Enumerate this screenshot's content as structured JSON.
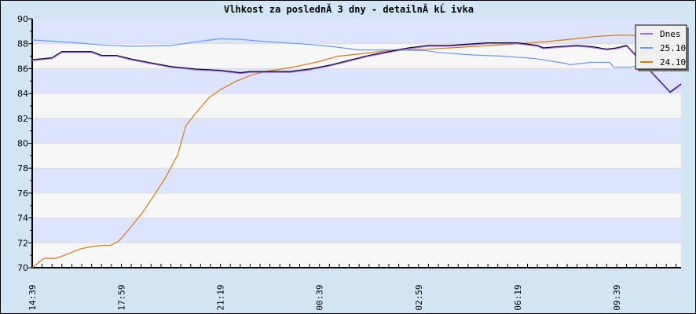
{
  "chart_data": {
    "type": "line",
    "title": "Vlhkost za poslednĂ­ 3 dny - detailnĂ­ kĹ ivka",
    "xlabel": "",
    "ylabel": "",
    "ylim": [
      70,
      90
    ],
    "yticks": [
      "70",
      "72",
      "74",
      "76",
      "78",
      "80",
      "82",
      "84",
      "86",
      "88",
      "90"
    ],
    "x_tick_labels": [
      "14:39",
      "17:59",
      "21:19",
      "00:39",
      "02:59",
      "06:19",
      "09:39"
    ],
    "x_tick_positions": [
      0,
      9,
      19,
      29,
      39,
      49,
      59
    ],
    "x_range": [
      0,
      65.5
    ],
    "grid": "horizontal bands",
    "legend_position": "top-right",
    "series": [
      {
        "name": "Dnes",
        "color": "#9966ff",
        "points": [
          [
            0,
            86.65
          ],
          [
            2,
            86.8
          ],
          [
            3,
            87.3
          ],
          [
            6,
            87.3
          ],
          [
            7,
            87.0
          ],
          [
            8.5,
            87.0
          ],
          [
            10,
            86.7
          ],
          [
            12,
            86.4
          ],
          [
            14,
            86.1
          ],
          [
            16.5,
            85.9
          ],
          [
            19,
            85.8
          ],
          [
            20,
            85.7
          ],
          [
            21,
            85.6
          ],
          [
            22,
            85.7
          ],
          [
            24,
            85.7
          ],
          [
            26,
            85.7
          ],
          [
            28,
            85.9
          ],
          [
            30,
            86.2
          ],
          [
            32,
            86.6
          ],
          [
            34,
            87.0
          ],
          [
            36,
            87.3
          ],
          [
            38,
            87.6
          ],
          [
            40,
            87.8
          ],
          [
            42,
            87.8
          ],
          [
            44,
            87.9
          ],
          [
            46,
            88.0
          ],
          [
            49,
            88.0
          ],
          [
            51,
            87.8
          ],
          [
            51.6,
            87.6
          ],
          [
            53,
            87.7
          ],
          [
            55,
            87.8
          ],
          [
            56.5,
            87.7
          ],
          [
            58,
            87.5
          ],
          [
            59,
            87.6
          ],
          [
            60,
            87.8
          ],
          [
            64.4,
            84.05
          ],
          [
            65.5,
            84.7
          ]
        ]
      },
      {
        "name": "25.10",
        "color": "#6699ff",
        "points": [
          [
            0,
            88.3
          ],
          [
            2,
            88.2
          ],
          [
            4,
            88.1
          ],
          [
            7,
            87.9
          ],
          [
            10,
            87.8
          ],
          [
            14,
            87.85
          ],
          [
            17,
            88.2
          ],
          [
            19,
            88.4
          ],
          [
            21,
            88.35
          ],
          [
            23,
            88.2
          ],
          [
            27,
            88.0
          ],
          [
            30,
            87.8
          ],
          [
            33,
            87.5
          ],
          [
            36.5,
            87.5
          ],
          [
            39.7,
            87.45
          ],
          [
            41,
            87.3
          ],
          [
            44.4,
            87.1
          ],
          [
            47.6,
            87.0
          ],
          [
            50.8,
            86.8
          ],
          [
            54,
            86.4
          ],
          [
            54.2,
            86.3
          ],
          [
            56.3,
            86.5
          ],
          [
            58.3,
            86.5
          ],
          [
            58.7,
            86.1
          ],
          [
            60.3,
            86.1
          ],
          [
            61,
            86.2
          ],
          [
            65.5,
            86.1
          ]
        ]
      },
      {
        "name": "24.10",
        "color": "#dd7711",
        "points": [
          [
            0,
            70.0
          ],
          [
            1.2,
            70.75
          ],
          [
            2.4,
            70.75
          ],
          [
            3.6,
            71.1
          ],
          [
            4.8,
            71.5
          ],
          [
            6,
            71.7
          ],
          [
            7.1,
            71.8
          ],
          [
            7.9,
            71.8
          ],
          [
            8.7,
            72.1
          ],
          [
            9.9,
            73.2
          ],
          [
            11.1,
            74.4
          ],
          [
            12.3,
            75.8
          ],
          [
            13.5,
            77.3
          ],
          [
            14.7,
            79.1
          ],
          [
            15.5,
            81.4
          ],
          [
            16.7,
            82.6
          ],
          [
            17.9,
            83.7
          ],
          [
            19,
            84.3
          ],
          [
            20.6,
            85.0
          ],
          [
            22.2,
            85.5
          ],
          [
            23.8,
            85.8
          ],
          [
            26.2,
            86.1
          ],
          [
            28.6,
            86.5
          ],
          [
            30.9,
            87.0
          ],
          [
            33.3,
            87.2
          ],
          [
            36.5,
            87.5
          ],
          [
            39.7,
            87.55
          ],
          [
            42.9,
            87.7
          ],
          [
            46,
            87.85
          ],
          [
            49.2,
            88.0
          ],
          [
            52.4,
            88.2
          ],
          [
            54.8,
            88.4
          ],
          [
            57.1,
            88.6
          ],
          [
            59.5,
            88.7
          ],
          [
            61.1,
            88.65
          ],
          [
            63.5,
            88.5
          ],
          [
            65.5,
            88.5
          ]
        ]
      }
    ]
  }
}
